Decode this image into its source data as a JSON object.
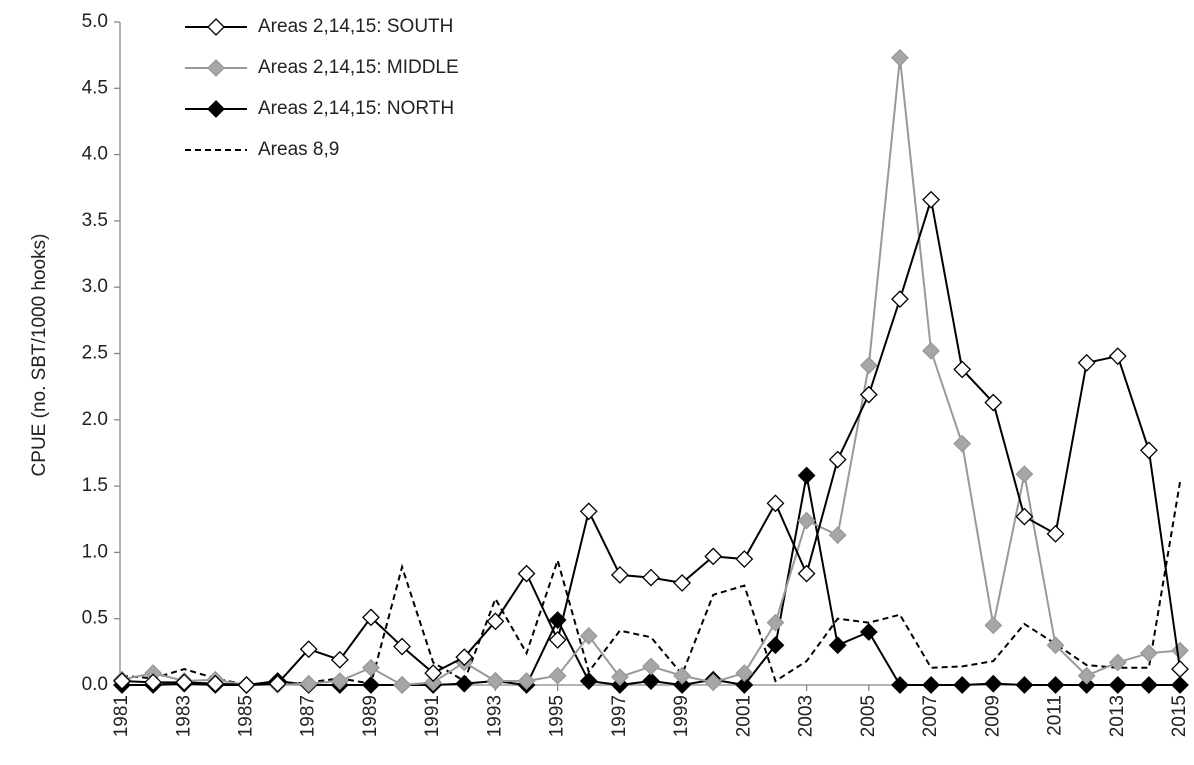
{
  "chart_data": {
    "type": "line",
    "y_label": "CPUE (no. SBT/1000 hooks)",
    "x": [
      1981,
      1982,
      1983,
      1984,
      1985,
      1986,
      1987,
      1988,
      1989,
      1990,
      1991,
      1992,
      1993,
      1994,
      1995,
      1996,
      1997,
      1998,
      1999,
      2000,
      2001,
      2002,
      2003,
      2004,
      2005,
      2006,
      2007,
      2008,
      2009,
      2010,
      2011,
      2012,
      2013,
      2014,
      2015
    ],
    "xlim": [
      1981,
      2015
    ],
    "xticks": [
      1981,
      1983,
      1985,
      1987,
      1989,
      1991,
      1993,
      1995,
      1997,
      1999,
      2001,
      2003,
      2005,
      2007,
      2009,
      2011,
      2013,
      2015
    ],
    "ylim": [
      0,
      5
    ],
    "yticks": [
      {
        "value": 0,
        "label": "0.0"
      },
      0.5,
      {
        "value": 1,
        "label": "1.0"
      },
      1.5,
      {
        "value": 2,
        "label": "2.0"
      },
      2.5,
      {
        "value": 3,
        "label": "3.0"
      },
      3.5,
      {
        "value": 4,
        "label": "4.0"
      },
      4.5,
      {
        "value": 5,
        "label": "5.0"
      }
    ],
    "grid": false,
    "legend": "top-left",
    "series": [
      {
        "name": "Areas 2,14,15: SOUTH",
        "color": "#000000",
        "marker": "diamond",
        "marker_fill": "#ffffff",
        "dashed": false,
        "values": [
          0.03,
          0.02,
          0.02,
          0.01,
          0.0,
          0.01,
          0.27,
          0.19,
          0.51,
          0.29,
          0.09,
          0.21,
          0.48,
          0.84,
          0.34,
          1.31,
          0.83,
          0.81,
          0.77,
          0.97,
          0.95,
          1.37,
          0.84,
          1.7,
          2.19,
          2.91,
          3.66,
          2.38,
          2.13,
          1.27,
          1.14,
          2.43,
          2.48,
          1.77,
          0.12
        ]
      },
      {
        "name": "Areas 2,14,15: MIDDLE",
        "color": "#999999",
        "marker": "diamond",
        "marker_fill": "#a6a6a6",
        "dashed": false,
        "values": [
          0.04,
          0.09,
          0.03,
          0.04,
          0.0,
          0.0,
          0.01,
          0.03,
          0.13,
          0.0,
          0.02,
          0.17,
          0.03,
          0.03,
          0.07,
          0.37,
          0.06,
          0.14,
          0.07,
          0.02,
          0.09,
          0.47,
          1.24,
          1.13,
          2.41,
          4.73,
          2.52,
          1.82,
          0.45,
          1.59,
          0.3,
          0.07,
          0.17,
          0.24,
          0.26
        ]
      },
      {
        "name": "Areas 2,14,15: NORTH",
        "color": "#000000",
        "marker": "diamond",
        "marker_fill": "#000000",
        "dashed": false,
        "values": [
          0.0,
          0.0,
          0.01,
          0.0,
          0.0,
          0.03,
          0.0,
          0.0,
          0.0,
          0.0,
          0.0,
          0.01,
          0.03,
          0.0,
          0.49,
          0.03,
          0.0,
          0.03,
          0.0,
          0.04,
          0.0,
          0.3,
          1.58,
          0.3,
          0.4,
          0.0,
          0.0,
          0.0,
          0.01,
          0.0,
          0.0,
          0.0,
          0.0,
          0.0,
          0.0
        ]
      },
      {
        "name": "Areas 8,9",
        "color": "#000000",
        "marker": "none",
        "marker_fill": "none",
        "dashed": true,
        "values": [
          0.07,
          0.05,
          0.12,
          0.05,
          0.0,
          0.0,
          0.02,
          0.05,
          0.01,
          0.89,
          0.17,
          0.03,
          0.65,
          0.24,
          0.94,
          0.1,
          0.41,
          0.36,
          0.08,
          0.68,
          0.75,
          0.03,
          0.18,
          0.5,
          0.47,
          0.53,
          0.13,
          0.14,
          0.18,
          0.46,
          0.31,
          0.15,
          0.13,
          0.13,
          1.53
        ]
      }
    ]
  }
}
